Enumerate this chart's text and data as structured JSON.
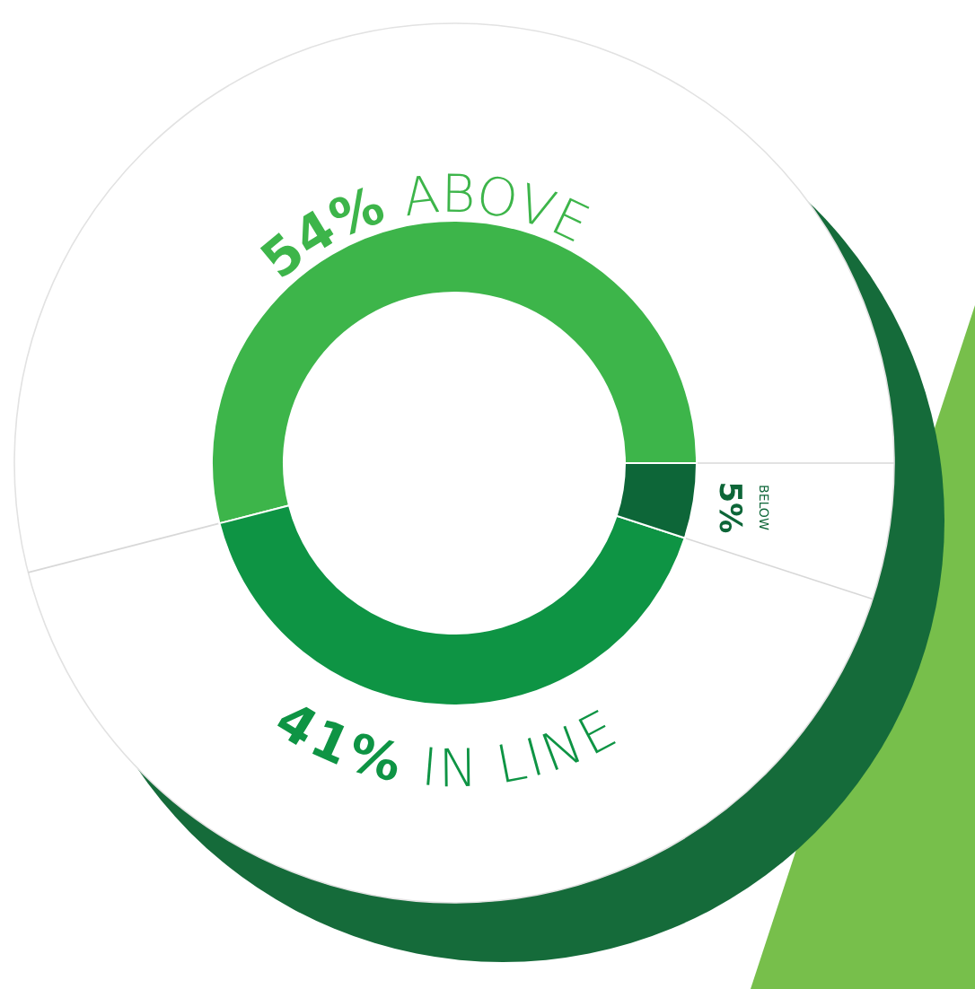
{
  "chart_data": {
    "type": "donut",
    "categories": [
      "ABOVE",
      "IN LINE",
      "BELOW"
    ],
    "values": [
      54,
      41,
      5
    ],
    "value_labels": [
      "54%",
      "41%",
      "5%"
    ],
    "colors": [
      "#3db54a",
      "#0e9444",
      "#0d6638"
    ]
  }
}
